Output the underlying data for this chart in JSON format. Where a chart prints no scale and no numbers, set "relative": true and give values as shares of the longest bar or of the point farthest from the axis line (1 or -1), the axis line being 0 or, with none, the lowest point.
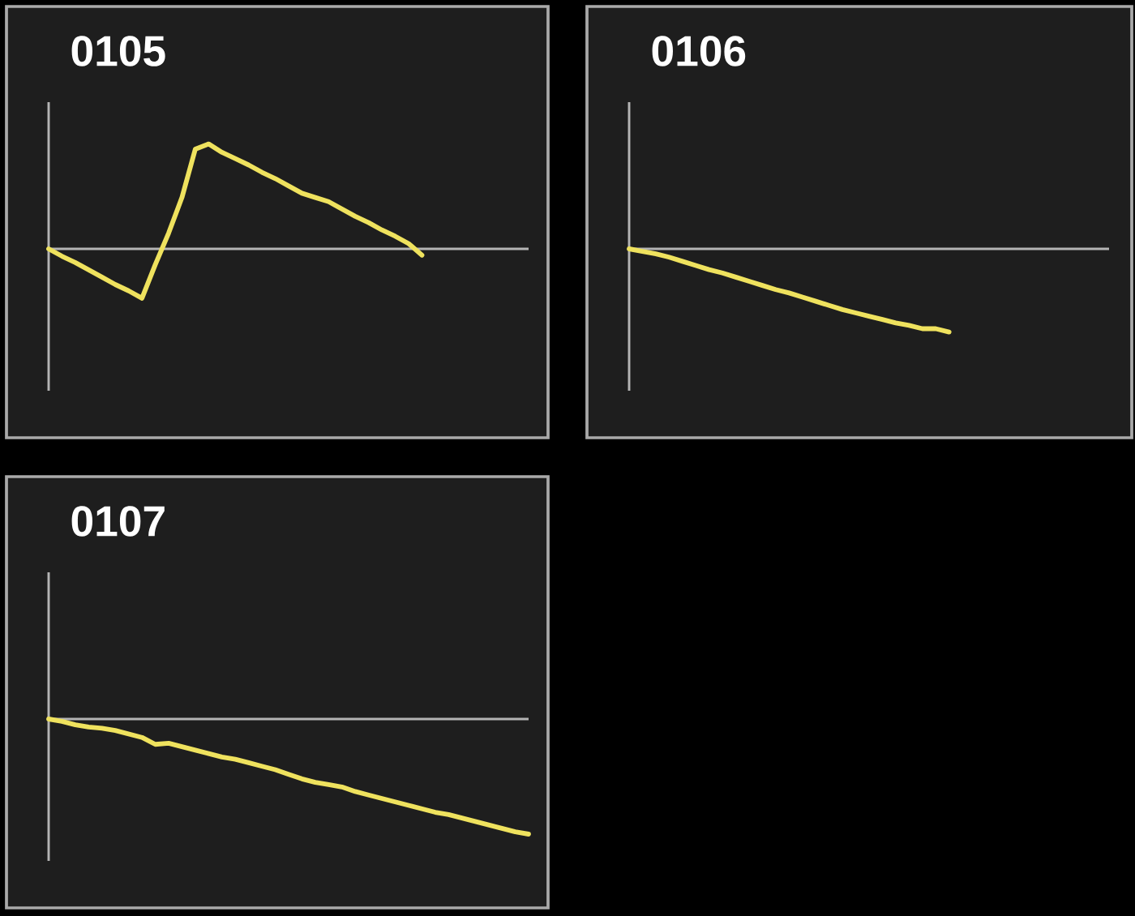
{
  "chart_data": [
    {
      "type": "line",
      "title": "0105",
      "relative": true,
      "marker": "none",
      "color": "#efe25e",
      "categories": [
        null,
        null,
        null,
        null,
        null,
        null,
        null,
        null,
        null,
        null,
        null,
        null,
        null,
        null,
        null,
        null,
        null,
        null,
        null,
        null,
        null,
        null,
        null,
        null,
        null,
        null,
        null,
        null,
        null,
        null,
        null,
        null,
        null,
        null,
        null,
        null,
        null
      ],
      "values": [
        0,
        -0.07,
        -0.13,
        -0.2,
        -0.27,
        -0.34,
        -0.4,
        -0.47,
        -0.15,
        0.15,
        0.49,
        0.95,
        1,
        0.92,
        0.86,
        0.8,
        0.73,
        0.67,
        0.6,
        0.53,
        0.49,
        0.45,
        0.38,
        0.31,
        0.25,
        0.18,
        0.12,
        0.05,
        -0.06,
        null,
        null,
        null,
        null,
        null,
        null,
        null,
        null
      ]
    },
    {
      "type": "line",
      "title": "0106",
      "relative": true,
      "marker": "none",
      "color": "#efe25e",
      "categories": [
        null,
        null,
        null,
        null,
        null,
        null,
        null,
        null,
        null,
        null,
        null,
        null,
        null,
        null,
        null,
        null,
        null,
        null,
        null,
        null,
        null,
        null,
        null,
        null,
        null,
        null,
        null,
        null,
        null,
        null,
        null,
        null,
        null,
        null,
        null,
        null,
        null
      ],
      "values": [
        0,
        -0.03,
        -0.06,
        -0.1,
        -0.15,
        -0.2,
        -0.25,
        -0.29,
        -0.34,
        -0.39,
        -0.44,
        -0.49,
        -0.53,
        -0.58,
        -0.63,
        -0.68,
        -0.73,
        -0.77,
        -0.81,
        -0.85,
        -0.89,
        -0.92,
        -0.96,
        -0.96,
        -1,
        null,
        null,
        null,
        null,
        null,
        null,
        null,
        null,
        null,
        null,
        null,
        null
      ]
    },
    {
      "type": "line",
      "title": "0107",
      "relative": true,
      "marker": "none",
      "color": "#efe25e",
      "categories": [
        null,
        null,
        null,
        null,
        null,
        null,
        null,
        null,
        null,
        null,
        null,
        null,
        null,
        null,
        null,
        null,
        null,
        null,
        null,
        null,
        null,
        null,
        null,
        null,
        null,
        null,
        null,
        null,
        null,
        null,
        null,
        null,
        null,
        null,
        null,
        null,
        null
      ],
      "values": [
        0,
        -0.02,
        -0.05,
        -0.07,
        -0.08,
        -0.1,
        -0.13,
        -0.16,
        -0.22,
        -0.21,
        -0.24,
        -0.27,
        -0.3,
        -0.33,
        -0.35,
        -0.38,
        -0.41,
        -0.44,
        -0.48,
        -0.52,
        -0.55,
        -0.57,
        -0.59,
        -0.63,
        -0.66,
        -0.69,
        -0.72,
        -0.75,
        -0.78,
        -0.81,
        -0.83,
        -0.86,
        -0.89,
        -0.92,
        -0.95,
        -0.98,
        -1
      ]
    }
  ]
}
